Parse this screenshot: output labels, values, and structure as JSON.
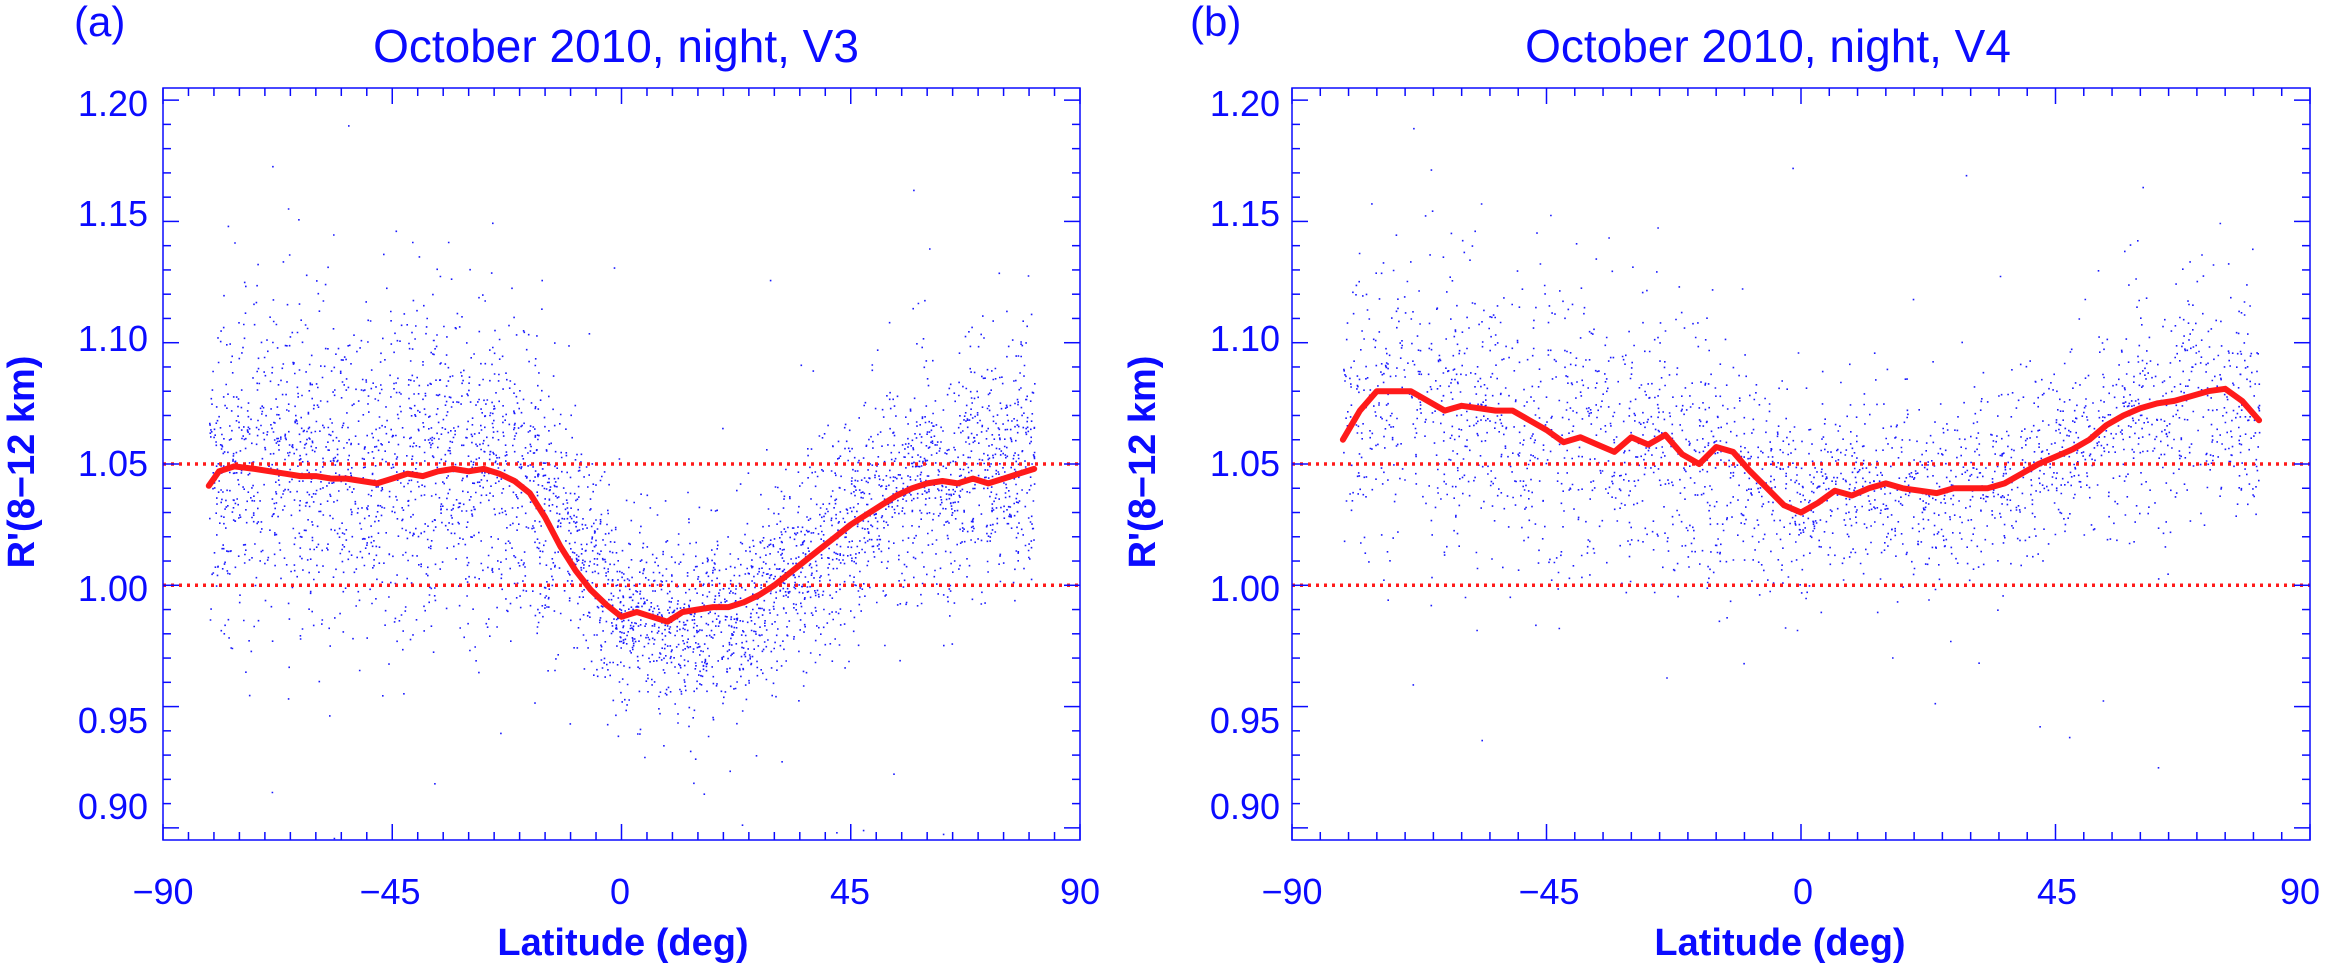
{
  "colors": {
    "axis": "#0b0bff",
    "scatter": "#1a1aff",
    "mean_line": "#ff1a1a",
    "reference_line": "#ff1a1a"
  },
  "chart_data": [
    {
      "type": "scatter",
      "panel_label": "(a)",
      "title": "October 2010, night, V3",
      "xlabel": "Latitude (deg)",
      "ylabel": "R'(8−12 km)",
      "xlim": [
        -90,
        90
      ],
      "ylim": [
        0.895,
        1.205
      ],
      "xticks": [
        "−90",
        "−45",
        "0",
        "45",
        "90"
      ],
      "yticks": [
        "0.90",
        "0.95",
        "1.00",
        "1.05",
        "1.10",
        "1.15",
        "1.20"
      ],
      "reference_lines": [
        1.0,
        1.05
      ],
      "grid": false,
      "legend": "none",
      "scatter_profile": {
        "lat": [
          -81,
          -70,
          -60,
          -50,
          -40,
          -30,
          -20,
          -15,
          -10,
          -5,
          0,
          5,
          10,
          15,
          20,
          25,
          30,
          35,
          40,
          45,
          50,
          55,
          60,
          65,
          70,
          75,
          81
        ],
        "center": [
          1.045,
          1.05,
          1.05,
          1.05,
          1.05,
          1.05,
          1.045,
          1.035,
          1.02,
          1.005,
          0.99,
          0.985,
          0.982,
          0.982,
          0.985,
          0.99,
          0.998,
          1.008,
          1.018,
          1.028,
          1.035,
          1.04,
          1.045,
          1.045,
          1.048,
          1.05,
          1.05
        ],
        "spread": [
          0.04,
          0.045,
          0.045,
          0.045,
          0.045,
          0.045,
          0.04,
          0.035,
          0.03,
          0.028,
          0.025,
          0.025,
          0.025,
          0.025,
          0.025,
          0.025,
          0.025,
          0.025,
          0.028,
          0.03,
          0.03,
          0.03,
          0.03,
          0.03,
          0.032,
          0.032,
          0.035
        ],
        "approx_points": 22000
      },
      "mean_line": {
        "lat": [
          -81,
          -79,
          -76,
          -72,
          -69,
          -66,
          -63,
          -60,
          -57,
          -54,
          -51,
          -48,
          -45,
          -42,
          -39,
          -36,
          -33,
          -30,
          -27,
          -24,
          -21,
          -18,
          -15,
          -12,
          -9,
          -6,
          -3,
          0,
          3,
          6,
          9,
          12,
          15,
          18,
          21,
          24,
          27,
          30,
          33,
          36,
          39,
          42,
          45,
          48,
          51,
          54,
          57,
          60,
          63,
          66,
          69,
          72,
          75,
          78,
          81
        ],
        "value": [
          1.041,
          1.047,
          1.049,
          1.048,
          1.047,
          1.046,
          1.045,
          1.045,
          1.044,
          1.044,
          1.043,
          1.042,
          1.044,
          1.046,
          1.045,
          1.047,
          1.048,
          1.047,
          1.048,
          1.046,
          1.043,
          1.038,
          1.028,
          1.016,
          1.006,
          0.998,
          0.992,
          0.987,
          0.989,
          0.987,
          0.985,
          0.989,
          0.99,
          0.991,
          0.991,
          0.993,
          0.996,
          1.0,
          1.005,
          1.01,
          1.015,
          1.02,
          1.025,
          1.029,
          1.033,
          1.037,
          1.04,
          1.042,
          1.043,
          1.042,
          1.044,
          1.042,
          1.044,
          1.046,
          1.048
        ]
      }
    },
    {
      "type": "scatter",
      "panel_label": "(b)",
      "title": "October 2010, night, V4",
      "xlabel": "Latitude (deg)",
      "ylabel": "R'(8−12 km)",
      "xlim": [
        -90,
        90
      ],
      "ylim": [
        0.895,
        1.205
      ],
      "xticks": [
        "−90",
        "−45",
        "0",
        "45",
        "90"
      ],
      "yticks": [
        "0.90",
        "0.95",
        "1.00",
        "1.05",
        "1.10",
        "1.15",
        "1.20"
      ],
      "reference_lines": [
        1.0,
        1.05
      ],
      "grid": false,
      "legend": "none",
      "scatter_profile": {
        "lat": [
          -81,
          -70,
          -60,
          -50,
          -40,
          -30,
          -20,
          -10,
          0,
          10,
          20,
          30,
          40,
          50,
          60,
          70,
          81
        ],
        "center": [
          1.07,
          1.08,
          1.075,
          1.07,
          1.065,
          1.06,
          1.055,
          1.045,
          1.035,
          1.04,
          1.038,
          1.04,
          1.05,
          1.06,
          1.07,
          1.078,
          1.07
        ],
        "spread": [
          0.035,
          0.04,
          0.04,
          0.04,
          0.04,
          0.04,
          0.035,
          0.03,
          0.025,
          0.025,
          0.025,
          0.025,
          0.025,
          0.028,
          0.03,
          0.03,
          0.03
        ],
        "approx_points": 22000
      },
      "mean_line": {
        "lat": [
          -81,
          -78,
          -75,
          -72,
          -69,
          -66,
          -63,
          -60,
          -57,
          -54,
          -51,
          -48,
          -45,
          -42,
          -39,
          -36,
          -33,
          -30,
          -27,
          -24,
          -21,
          -18,
          -15,
          -12,
          -9,
          -6,
          -3,
          0,
          3,
          6,
          9,
          12,
          15,
          18,
          21,
          24,
          27,
          30,
          33,
          36,
          39,
          42,
          45,
          48,
          51,
          54,
          57,
          60,
          63,
          66,
          69,
          72,
          75,
          78,
          81
        ],
        "value": [
          1.06,
          1.072,
          1.08,
          1.08,
          1.08,
          1.076,
          1.072,
          1.074,
          1.073,
          1.072,
          1.072,
          1.068,
          1.064,
          1.059,
          1.061,
          1.058,
          1.055,
          1.061,
          1.058,
          1.062,
          1.054,
          1.05,
          1.057,
          1.055,
          1.047,
          1.04,
          1.033,
          1.03,
          1.034,
          1.039,
          1.037,
          1.04,
          1.042,
          1.04,
          1.039,
          1.038,
          1.04,
          1.04,
          1.04,
          1.042,
          1.046,
          1.05,
          1.053,
          1.056,
          1.06,
          1.066,
          1.07,
          1.073,
          1.075,
          1.076,
          1.078,
          1.08,
          1.081,
          1.076,
          1.068
        ]
      }
    }
  ]
}
